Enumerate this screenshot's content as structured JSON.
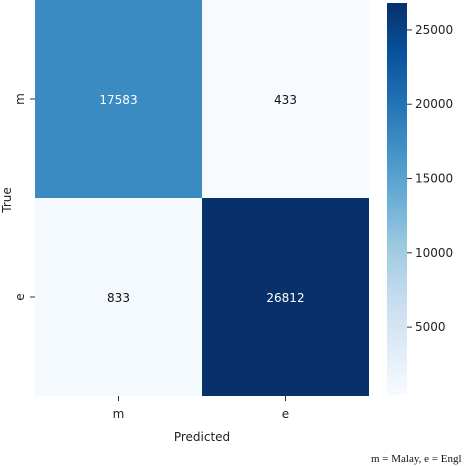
{
  "chart_data": {
    "type": "heatmap",
    "title": "",
    "xlabel": "Predicted",
    "ylabel": "True",
    "x_categories": [
      "m",
      "e"
    ],
    "y_categories": [
      "m",
      "e"
    ],
    "matrix": [
      [
        17583,
        433
      ],
      [
        833,
        26812
      ]
    ],
    "colorbar": {
      "min": 433,
      "max": 26812,
      "ticks": [
        5000,
        10000,
        15000,
        20000,
        25000
      ],
      "colormap": "Blues"
    },
    "grid": false,
    "legend": "colorbar-right"
  },
  "caption": "m = Malay, e = Engl"
}
